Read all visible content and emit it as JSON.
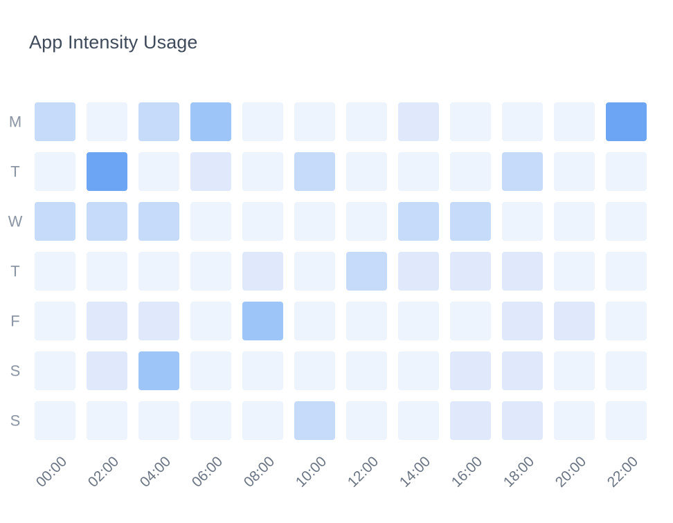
{
  "chart_data": {
    "type": "heatmap",
    "title": "App Intensity Usage",
    "x": [
      "00:00",
      "02:00",
      "04:00",
      "06:00",
      "08:00",
      "10:00",
      "12:00",
      "14:00",
      "16:00",
      "18:00",
      "20:00",
      "22:00"
    ],
    "y": [
      "M",
      "T",
      "W",
      "T",
      "F",
      "S",
      "S"
    ],
    "levels": 5,
    "values": [
      [
        2,
        0,
        2,
        3,
        0,
        0,
        0,
        1,
        0,
        0,
        0,
        4
      ],
      [
        0,
        4,
        0,
        1,
        0,
        2,
        0,
        0,
        0,
        2,
        0,
        0
      ],
      [
        2,
        2,
        2,
        0,
        0,
        0,
        0,
        2,
        2,
        0,
        0,
        0
      ],
      [
        0,
        0,
        0,
        0,
        1,
        0,
        2,
        1,
        1,
        1,
        0,
        0
      ],
      [
        0,
        1,
        1,
        0,
        3,
        0,
        0,
        0,
        0,
        1,
        1,
        0
      ],
      [
        0,
        1,
        3,
        0,
        0,
        0,
        0,
        0,
        1,
        1,
        0,
        0
      ],
      [
        0,
        0,
        0,
        0,
        0,
        2,
        0,
        0,
        1,
        1,
        0,
        0
      ]
    ],
    "colors": [
      "#edf4fd",
      "#dfe9fb",
      "#c6dafa",
      "#9ec5f8",
      "#6ca5f3"
    ],
    "legend": "none",
    "grid": false
  }
}
